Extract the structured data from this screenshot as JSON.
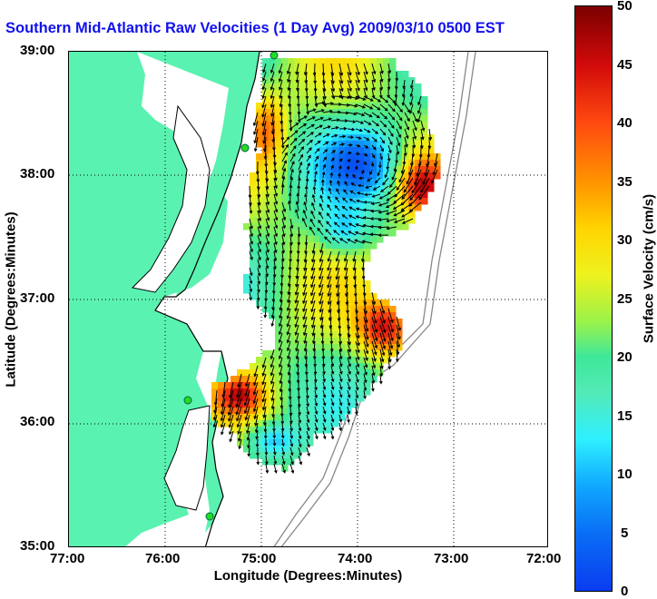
{
  "title": "Southern Mid-Atlantic Raw Velocities (1 Day Avg) 2009/03/10 0500 EST",
  "x_axis": {
    "label": "Longitude (Degrees:Minutes)",
    "ticks": [
      "77:00",
      "76:00",
      "75:00",
      "74:00",
      "73:00",
      "72:00"
    ]
  },
  "y_axis": {
    "label": "Latitude (Degrees:Minutes)",
    "ticks": [
      "39:00",
      "38:00",
      "37:00",
      "36:00",
      "35:00"
    ]
  },
  "colorbar": {
    "label": "Surface Velocity (cm/s)",
    "ticks": [
      "50",
      "45",
      "40",
      "35",
      "30",
      "25",
      "20",
      "15",
      "10",
      "5",
      "0"
    ],
    "range": [
      0,
      50
    ]
  },
  "colors": {
    "land": "#5af2b0",
    "title": "#1111ee",
    "station": "#22dd22"
  }
}
